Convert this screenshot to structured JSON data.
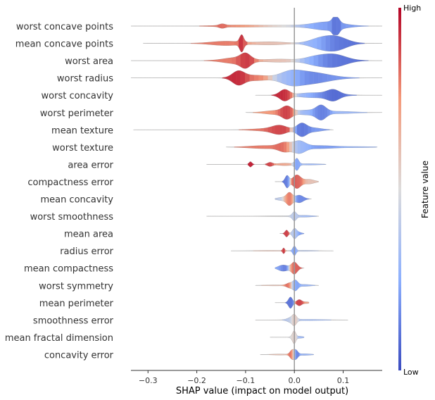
{
  "colors": {
    "high": "#b40426",
    "mid": "#dddcdc",
    "low": "#3b4cc0",
    "zero_line": "#999999"
  },
  "chart_data": {
    "type": "violin",
    "xlabel": "SHAP value (impact on model output)",
    "xlim": [
      -0.335,
      0.18
    ],
    "xticks": [
      -0.3,
      -0.2,
      -0.1,
      0.0,
      0.1
    ],
    "xtick_labels": [
      "−0.3",
      "−0.2",
      "−0.1",
      "0.0",
      "0.1"
    ],
    "colorbar": {
      "label": "Feature value",
      "high": "High",
      "low": "Low"
    },
    "features": [
      {
        "name": "worst concave points",
        "range": [
          -0.335,
          0.18
        ],
        "peaks": [
          [
            -0.148,
            0.2,
            0.006,
            0.85
          ],
          [
            -0.12,
            0.12,
            0.04,
            0.8
          ],
          [
            -0.02,
            0.1,
            0.05,
            0.5
          ],
          [
            0.07,
            0.55,
            0.03,
            0.2
          ],
          [
            0.085,
            1.0,
            0.006,
            0.05
          ]
        ]
      },
      {
        "name": "mean concave points",
        "range": [
          -0.31,
          0.18
        ],
        "peaks": [
          [
            -0.108,
            1.0,
            0.004,
            0.95
          ],
          [
            -0.14,
            0.28,
            0.03,
            0.8
          ],
          [
            -0.05,
            0.2,
            0.03,
            0.6
          ],
          [
            0.05,
            0.55,
            0.02,
            0.3
          ],
          [
            0.085,
            0.9,
            0.022,
            0.1
          ]
        ]
      },
      {
        "name": "worst area",
        "range": [
          -0.335,
          0.18
        ],
        "peaks": [
          [
            -0.12,
            0.4,
            0.025,
            0.8
          ],
          [
            -0.1,
            0.75,
            0.01,
            0.95
          ],
          [
            -0.03,
            0.2,
            0.03,
            0.6
          ],
          [
            0.04,
            0.4,
            0.02,
            0.3
          ],
          [
            0.08,
            0.85,
            0.025,
            0.1
          ]
        ]
      },
      {
        "name": "worst radius",
        "range": [
          -0.335,
          0.18
        ],
        "peaks": [
          [
            -0.115,
            0.85,
            0.012,
            0.95
          ],
          [
            -0.08,
            0.35,
            0.025,
            0.8
          ],
          [
            -0.01,
            0.6,
            0.02,
            0.4
          ],
          [
            0.02,
            0.65,
            0.03,
            0.12
          ],
          [
            0.06,
            0.3,
            0.03,
            0.2
          ]
        ]
      },
      {
        "name": "worst concavity",
        "range": [
          -0.08,
          0.18
        ],
        "peaks": [
          [
            -0.02,
            0.75,
            0.01,
            0.95
          ],
          [
            0.02,
            0.15,
            0.02,
            0.4
          ],
          [
            0.06,
            0.3,
            0.03,
            0.15
          ],
          [
            0.08,
            0.55,
            0.012,
            0.05
          ]
        ]
      },
      {
        "name": "worst perimeter",
        "range": [
          -0.1,
          0.18
        ],
        "peaks": [
          [
            -0.015,
            0.75,
            0.01,
            0.95
          ],
          [
            -0.04,
            0.25,
            0.02,
            0.75
          ],
          [
            0.025,
            0.3,
            0.02,
            0.3
          ],
          [
            0.055,
            0.85,
            0.01,
            0.1
          ],
          [
            0.09,
            0.15,
            0.03,
            0.3
          ]
        ]
      },
      {
        "name": "mean texture",
        "range": [
          -0.33,
          0.08
        ],
        "peaks": [
          [
            -0.03,
            0.55,
            0.015,
            0.9
          ],
          [
            -0.06,
            0.15,
            0.025,
            0.8
          ],
          [
            0.015,
            0.85,
            0.01,
            0.1
          ],
          [
            0.04,
            0.25,
            0.015,
            0.2
          ]
        ]
      },
      {
        "name": "worst texture",
        "range": [
          -0.14,
          0.17
        ],
        "peaks": [
          [
            -0.02,
            0.55,
            0.012,
            0.85
          ],
          [
            -0.06,
            0.2,
            0.03,
            0.8
          ],
          [
            0.01,
            0.75,
            0.012,
            0.3
          ],
          [
            0.05,
            0.2,
            0.03,
            0.2
          ],
          [
            0.13,
            0.06,
            0.03,
            0.3
          ]
        ]
      },
      {
        "name": "area error",
        "range": [
          -0.18,
          0.065
        ],
        "peaks": [
          [
            -0.09,
            0.35,
            0.003,
            0.95
          ],
          [
            -0.05,
            0.25,
            0.005,
            0.9
          ],
          [
            -0.02,
            0.15,
            0.015,
            0.7
          ],
          [
            0.005,
            0.75,
            0.004,
            0.2
          ],
          [
            0.03,
            0.08,
            0.02,
            0.3
          ]
        ]
      },
      {
        "name": "compactness error",
        "range": [
          -0.04,
          0.05
        ],
        "peaks": [
          [
            -0.015,
            0.8,
            0.004,
            0.1
          ],
          [
            0.005,
            0.9,
            0.008,
            0.85
          ],
          [
            0.03,
            0.3,
            0.01,
            0.6
          ]
        ]
      },
      {
        "name": "mean concavity",
        "range": [
          -0.04,
          0.035
        ],
        "peaks": [
          [
            -0.01,
            0.8,
            0.006,
            0.85
          ],
          [
            0.01,
            0.5,
            0.008,
            0.15
          ],
          [
            -0.025,
            0.2,
            0.01,
            0.4
          ]
        ]
      },
      {
        "name": "worst smoothness",
        "range": [
          -0.18,
          0.05
        ],
        "peaks": [
          [
            0.0,
            0.55,
            0.004,
            0.4
          ],
          [
            0.02,
            0.1,
            0.015,
            0.3
          ],
          [
            -0.03,
            0.06,
            0.03,
            0.5
          ]
        ]
      },
      {
        "name": "mean area",
        "range": [
          -0.03,
          0.02
        ],
        "peaks": [
          [
            -0.016,
            0.45,
            0.003,
            0.9
          ],
          [
            0.0,
            0.6,
            0.004,
            0.4
          ],
          [
            0.007,
            0.2,
            0.006,
            0.2
          ]
        ]
      },
      {
        "name": "radius error",
        "range": [
          -0.13,
          0.08
        ],
        "peaks": [
          [
            -0.022,
            0.35,
            0.002,
            0.95
          ],
          [
            0.0,
            0.6,
            0.003,
            0.2
          ],
          [
            0.02,
            0.06,
            0.02,
            0.4
          ],
          [
            -0.05,
            0.04,
            0.03,
            0.6
          ]
        ]
      },
      {
        "name": "mean compactness",
        "range": [
          -0.04,
          0.02
        ],
        "peaks": [
          [
            -0.02,
            0.35,
            0.008,
            0.1
          ],
          [
            0.0,
            0.8,
            0.006,
            0.85
          ],
          [
            -0.03,
            0.15,
            0.006,
            0.3
          ]
        ]
      },
      {
        "name": "worst symmetry",
        "range": [
          -0.08,
          0.05
        ],
        "peaks": [
          [
            -0.01,
            0.3,
            0.006,
            0.85
          ],
          [
            0.002,
            0.65,
            0.005,
            0.2
          ],
          [
            0.02,
            0.12,
            0.012,
            0.3
          ],
          [
            -0.04,
            0.05,
            0.02,
            0.6
          ]
        ]
      },
      {
        "name": "mean perimeter",
        "range": [
          -0.04,
          0.03
        ],
        "peaks": [
          [
            -0.008,
            0.75,
            0.004,
            0.1
          ],
          [
            0.01,
            0.4,
            0.005,
            0.9
          ],
          [
            0.025,
            0.1,
            0.006,
            0.7
          ]
        ]
      },
      {
        "name": "smoothness error",
        "range": [
          -0.08,
          0.11
        ],
        "peaks": [
          [
            -0.005,
            0.35,
            0.008,
            0.4
          ],
          [
            0.0,
            0.45,
            0.004,
            0.7
          ],
          [
            0.03,
            0.06,
            0.03,
            0.3
          ]
        ]
      },
      {
        "name": "mean fractal dimension",
        "range": [
          -0.05,
          0.02
        ],
        "peaks": [
          [
            -0.002,
            0.35,
            0.004,
            0.5
          ],
          [
            0.0,
            0.5,
            0.003,
            0.6
          ],
          [
            0.01,
            0.12,
            0.008,
            0.3
          ]
        ]
      },
      {
        "name": "concavity error",
        "range": [
          -0.07,
          0.04
        ],
        "peaks": [
          [
            -0.005,
            0.55,
            0.004,
            0.85
          ],
          [
            0.003,
            0.55,
            0.004,
            0.1
          ],
          [
            0.02,
            0.1,
            0.012,
            0.3
          ],
          [
            -0.03,
            0.06,
            0.015,
            0.6
          ]
        ]
      }
    ]
  }
}
